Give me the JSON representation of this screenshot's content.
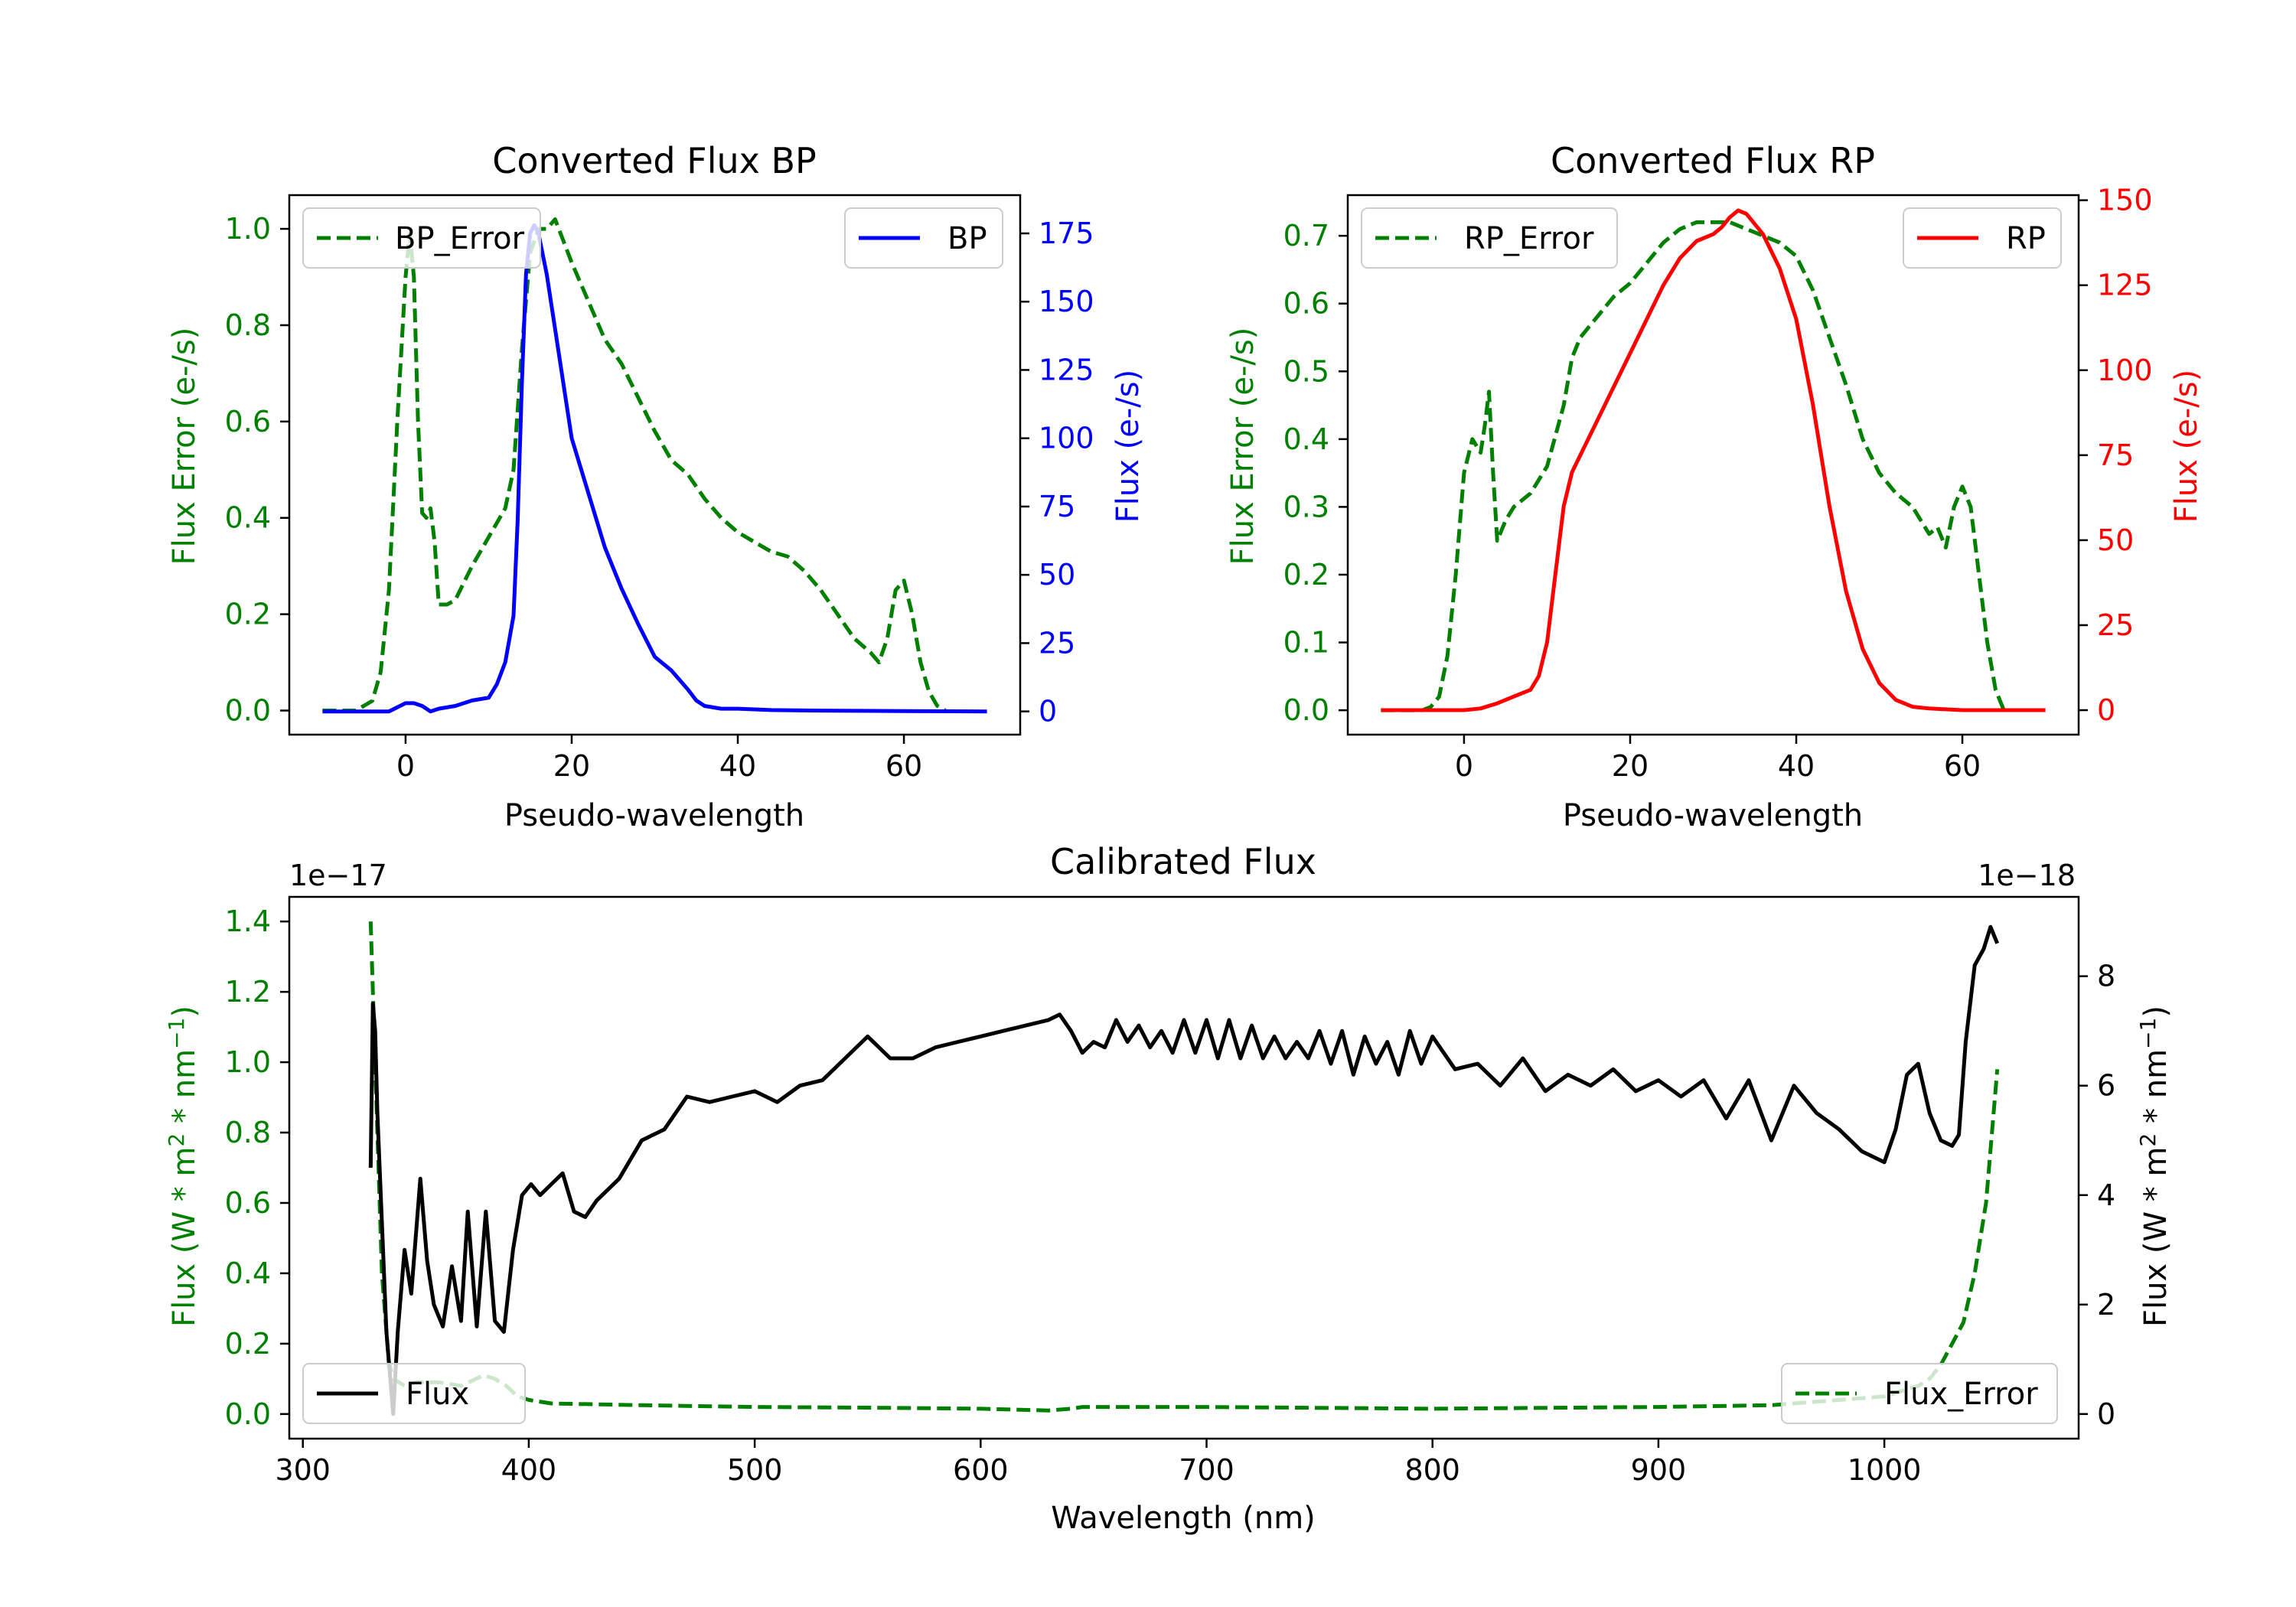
{
  "chart_data": [
    {
      "id": "bp",
      "type": "line",
      "title": "Converted Flux BP",
      "xlabel": "Pseudo-wavelength",
      "ylabel_left": "Flux Error (e-/s)",
      "ylabel_right": "Flux (e-/s)",
      "xlim": [
        -14,
        74
      ],
      "ylim_left": [
        -0.05,
        1.07
      ],
      "ylim_right": [
        -8.5,
        189
      ],
      "xticks": [
        0,
        20,
        40,
        60
      ],
      "yticks_left": [
        "0.0",
        "0.2",
        "0.4",
        "0.6",
        "0.8",
        "1.0"
      ],
      "yticks_left_values": [
        0,
        0.2,
        0.4,
        0.6,
        0.8,
        1.0
      ],
      "yticks_right": [
        "0",
        "25",
        "50",
        "75",
        "100",
        "125",
        "150",
        "175"
      ],
      "yticks_right_values": [
        0,
        25,
        50,
        75,
        100,
        125,
        150,
        175
      ],
      "left_color": "#008000",
      "right_color": "#0000ff",
      "series": [
        {
          "name": "BP_Error",
          "axis": "left",
          "style": "dashed",
          "color": "#008000",
          "x": [
            -10,
            -6,
            -4,
            -3,
            -2,
            -1,
            0,
            0.5,
            1,
            1.5,
            2,
            2.5,
            3,
            3.5,
            4,
            5,
            6,
            8,
            10,
            12,
            13,
            14,
            15,
            16,
            17,
            18,
            20,
            22,
            24,
            26,
            28,
            30,
            32,
            34,
            36,
            38,
            40,
            42,
            44,
            46,
            48,
            50,
            52,
            54,
            56,
            57,
            58,
            59,
            60,
            61,
            62,
            63,
            64,
            65
          ],
          "values": [
            0,
            0,
            0.02,
            0.08,
            0.25,
            0.6,
            0.9,
            0.99,
            0.9,
            0.6,
            0.41,
            0.4,
            0.42,
            0.35,
            0.22,
            0.22,
            0.23,
            0.3,
            0.36,
            0.42,
            0.5,
            0.75,
            0.95,
            1.0,
            1.0,
            1.02,
            0.93,
            0.85,
            0.77,
            0.72,
            0.65,
            0.58,
            0.52,
            0.49,
            0.44,
            0.4,
            0.37,
            0.35,
            0.33,
            0.32,
            0.29,
            0.25,
            0.2,
            0.15,
            0.12,
            0.1,
            0.15,
            0.25,
            0.27,
            0.2,
            0.1,
            0.04,
            0.01,
            0.0
          ]
        },
        {
          "name": "BP",
          "axis": "right",
          "style": "solid",
          "color": "#0000ff",
          "x": [
            -10,
            -2,
            0,
            1,
            2,
            3,
            4,
            6,
            8,
            10,
            11,
            12,
            13,
            13.5,
            14,
            14.5,
            15,
            15.5,
            16,
            17,
            18,
            20,
            22,
            24,
            26,
            28,
            30,
            32,
            34,
            35,
            36,
            38,
            40,
            44,
            50,
            60,
            70
          ],
          "values": [
            0,
            0,
            3,
            3,
            2,
            0,
            1,
            2,
            4,
            5,
            10,
            18,
            35,
            70,
            120,
            160,
            175,
            178,
            175,
            160,
            140,
            100,
            80,
            60,
            45,
            32,
            20,
            15,
            8,
            4,
            2,
            1,
            1,
            0.5,
            0.3,
            0.1,
            0
          ]
        }
      ],
      "legend": [
        {
          "label": "BP_Error",
          "position": "top-left"
        },
        {
          "label": "BP",
          "position": "top-right"
        }
      ]
    },
    {
      "id": "rp",
      "type": "line",
      "title": "Converted Flux RP",
      "xlabel": "Pseudo-wavelength",
      "ylabel_left": "Flux Error (e-/s)",
      "ylabel_right": "Flux (e-/s)",
      "xlim": [
        -14,
        74
      ],
      "ylim_left": [
        -0.036,
        0.76
      ],
      "ylim_right": [
        -7.2,
        151.5
      ],
      "xticks": [
        0,
        20,
        40,
        60
      ],
      "yticks_left": [
        "0.0",
        "0.1",
        "0.2",
        "0.3",
        "0.4",
        "0.5",
        "0.6",
        "0.7"
      ],
      "yticks_left_values": [
        0,
        0.1,
        0.2,
        0.3,
        0.4,
        0.5,
        0.6,
        0.7
      ],
      "yticks_right": [
        "0",
        "25",
        "50",
        "75",
        "100",
        "125",
        "150"
      ],
      "yticks_right_values": [
        0,
        25,
        50,
        75,
        100,
        125,
        150
      ],
      "left_color": "#008000",
      "right_color": "#ff0000",
      "series": [
        {
          "name": "RP_Error",
          "axis": "left",
          "style": "dashed",
          "color": "#008000",
          "x": [
            -10,
            -5,
            -4,
            -3,
            -2,
            -1,
            0,
            1,
            2,
            2.5,
            3,
            3.5,
            4,
            5,
            6,
            8,
            10,
            12,
            13,
            14,
            16,
            18,
            20,
            22,
            24,
            26,
            28,
            30,
            32,
            34,
            36,
            38,
            40,
            42,
            44,
            46,
            48,
            50,
            52,
            54,
            55,
            56,
            57,
            58,
            59,
            60,
            61,
            62,
            63,
            64,
            65
          ],
          "values": [
            0,
            0,
            0.005,
            0.02,
            0.08,
            0.2,
            0.35,
            0.4,
            0.38,
            0.42,
            0.47,
            0.35,
            0.25,
            0.28,
            0.3,
            0.32,
            0.36,
            0.45,
            0.52,
            0.55,
            0.58,
            0.61,
            0.63,
            0.66,
            0.69,
            0.71,
            0.72,
            0.72,
            0.72,
            0.71,
            0.7,
            0.69,
            0.67,
            0.62,
            0.55,
            0.48,
            0.4,
            0.35,
            0.32,
            0.3,
            0.28,
            0.26,
            0.27,
            0.24,
            0.3,
            0.33,
            0.3,
            0.2,
            0.1,
            0.03,
            0.0
          ]
        },
        {
          "name": "RP",
          "axis": "right",
          "style": "solid",
          "color": "#ff0000",
          "x": [
            -10,
            0,
            2,
            4,
            6,
            8,
            9,
            10,
            11,
            12,
            13,
            14,
            16,
            18,
            20,
            22,
            24,
            26,
            28,
            30,
            31,
            32,
            33,
            34,
            35,
            36,
            38,
            40,
            42,
            44,
            46,
            48,
            50,
            52,
            54,
            56,
            60,
            65,
            70
          ],
          "values": [
            0,
            0,
            0.5,
            2,
            4,
            6,
            10,
            20,
            40,
            60,
            70,
            75,
            85,
            95,
            105,
            115,
            125,
            133,
            138,
            140,
            142,
            145,
            147,
            146,
            143,
            140,
            130,
            115,
            90,
            60,
            35,
            18,
            8,
            3,
            1,
            0.5,
            0,
            0,
            0
          ]
        }
      ],
      "legend": [
        {
          "label": "RP_Error",
          "position": "top-left"
        },
        {
          "label": "RP",
          "position": "top-right"
        }
      ]
    },
    {
      "id": "cal",
      "type": "line",
      "title": "Calibrated Flux",
      "xlabel": "Wavelength (nm)",
      "ylabel_left": "Flux (W * m^2 * nm^-1)",
      "ylabel_right": "Flux (W * m^2 * nm^-1)",
      "offset_left": "1e−17",
      "offset_right": "1e−18",
      "xlim": [
        294,
        1086
      ],
      "ylim_left": [
        -0.07,
        1.47
      ],
      "ylim_right": [
        -0.45,
        9.45
      ],
      "xticks": [
        300,
        400,
        500,
        600,
        700,
        800,
        900,
        1000
      ],
      "yticks_left": [
        "0.0",
        "0.2",
        "0.4",
        "0.6",
        "0.8",
        "1.0",
        "1.2",
        "1.4"
      ],
      "yticks_left_values": [
        0,
        0.2,
        0.4,
        0.6,
        0.8,
        1.0,
        1.2,
        1.4
      ],
      "yticks_right": [
        "0",
        "2",
        "4",
        "6",
        "8"
      ],
      "yticks_right_values": [
        0,
        2,
        4,
        6,
        8
      ],
      "left_color": "#008000",
      "right_color": "#000000",
      "series": [
        {
          "name": "Flux_Error",
          "axis": "left",
          "style": "dashed",
          "color": "#008000",
          "x": [
            330,
            331,
            333,
            335,
            338,
            340,
            345,
            350,
            360,
            370,
            380,
            385,
            390,
            395,
            400,
            410,
            450,
            500,
            550,
            600,
            630,
            640,
            645,
            700,
            800,
            900,
            950,
            1000,
            1010,
            1015,
            1020,
            1025,
            1030,
            1035,
            1040,
            1045,
            1050
          ],
          "values": [
            1.4,
            1.2,
            0.8,
            0.4,
            0.15,
            0.1,
            0.08,
            0.09,
            0.09,
            0.08,
            0.11,
            0.1,
            0.08,
            0.05,
            0.04,
            0.03,
            0.025,
            0.02,
            0.018,
            0.015,
            0.01,
            0.015,
            0.02,
            0.02,
            0.015,
            0.02,
            0.025,
            0.05,
            0.07,
            0.08,
            0.1,
            0.14,
            0.2,
            0.26,
            0.4,
            0.6,
            0.98
          ]
        },
        {
          "name": "Flux",
          "axis": "right",
          "style": "solid",
          "color": "#000000",
          "x": [
            330,
            331,
            332,
            333,
            335,
            337,
            339,
            340,
            342,
            345,
            348,
            352,
            355,
            358,
            362,
            366,
            370,
            373,
            377,
            381,
            385,
            389,
            393,
            397,
            401,
            405,
            410,
            415,
            420,
            425,
            430,
            440,
            450,
            460,
            470,
            480,
            490,
            500,
            510,
            520,
            530,
            540,
            550,
            560,
            570,
            580,
            590,
            600,
            610,
            620,
            630,
            635,
            640,
            645,
            650,
            655,
            660,
            665,
            670,
            675,
            680,
            685,
            690,
            695,
            700,
            705,
            710,
            715,
            720,
            725,
            730,
            735,
            740,
            745,
            750,
            755,
            760,
            765,
            770,
            775,
            780,
            785,
            790,
            795,
            800,
            810,
            820,
            830,
            840,
            850,
            860,
            870,
            880,
            890,
            900,
            910,
            920,
            930,
            940,
            950,
            960,
            970,
            980,
            990,
            1000,
            1005,
            1010,
            1015,
            1020,
            1025,
            1030,
            1033,
            1036,
            1040,
            1044,
            1047,
            1050
          ],
          "values": [
            4.5,
            7.5,
            7.0,
            5.5,
            3.5,
            1.5,
            0.5,
            0.0,
            1.5,
            3.0,
            2.2,
            4.3,
            2.8,
            2.0,
            1.6,
            2.7,
            1.7,
            3.7,
            1.6,
            3.7,
            1.7,
            1.5,
            3.0,
            4.0,
            4.2,
            4.0,
            4.2,
            4.4,
            3.7,
            3.6,
            3.9,
            4.3,
            5.0,
            5.2,
            5.8,
            5.7,
            5.8,
            5.9,
            5.7,
            6.0,
            6.1,
            6.5,
            6.9,
            6.5,
            6.5,
            6.7,
            6.8,
            6.9,
            7.0,
            7.1,
            7.2,
            7.3,
            7.0,
            6.6,
            6.8,
            6.7,
            7.2,
            6.8,
            7.1,
            6.7,
            7.0,
            6.6,
            7.2,
            6.6,
            7.2,
            6.5,
            7.2,
            6.5,
            7.1,
            6.5,
            6.9,
            6.5,
            6.8,
            6.5,
            7.0,
            6.4,
            7.0,
            6.2,
            6.9,
            6.4,
            6.8,
            6.2,
            7.0,
            6.4,
            6.9,
            6.3,
            6.4,
            6.0,
            6.5,
            5.9,
            6.2,
            6.0,
            6.3,
            5.9,
            6.1,
            5.8,
            6.1,
            5.4,
            6.1,
            5.0,
            6.0,
            5.5,
            5.2,
            4.8,
            4.6,
            5.2,
            6.2,
            6.4,
            5.5,
            5.0,
            4.9,
            5.1,
            6.8,
            8.2,
            8.5,
            8.9,
            8.6
          ]
        }
      ],
      "legend": [
        {
          "label": "Flux",
          "position": "lower-left"
        },
        {
          "label": "Flux_Error",
          "position": "lower-right"
        }
      ]
    }
  ]
}
